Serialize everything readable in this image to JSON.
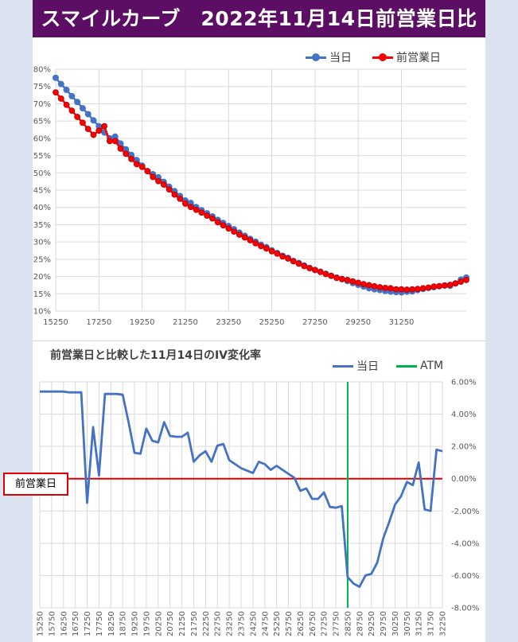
{
  "header": {
    "title": "スマイルカーブ　2022年11月14日前営業日比"
  },
  "legend1": {
    "today": "当日",
    "previous": "前営業日"
  },
  "legend2": {
    "today": "当日",
    "atm": "ATM"
  },
  "side_label": "前営業日",
  "colors": {
    "header_bg": "#5b0e63",
    "today": "#4472c4",
    "previous": "#ff0000",
    "atm": "#00b050",
    "zero_line": "#e00000",
    "page_bg": "#dbe3f1"
  },
  "chart_data": [
    {
      "type": "line",
      "title": "",
      "xlabel": "",
      "ylabel": "",
      "x_start": 15250,
      "x_step": 250,
      "ylim": [
        0.1,
        0.8
      ],
      "y_ticks": [
        "10%",
        "15%",
        "20%",
        "25%",
        "30%",
        "35%",
        "40%",
        "45%",
        "50%",
        "55%",
        "60%",
        "65%",
        "70%",
        "75%",
        "80%"
      ],
      "x_ticks": [
        "15250",
        "17250",
        "19250",
        "21250",
        "23250",
        "25250",
        "27250",
        "29250",
        "31250"
      ],
      "grid": true,
      "legend_position": "top-right",
      "series": [
        {
          "name": "当日",
          "values": [
            0.775,
            0.757,
            0.74,
            0.722,
            0.705,
            0.687,
            0.67,
            0.652,
            0.635,
            0.617,
            0.6,
            0.605,
            0.585,
            0.568,
            0.552,
            0.537,
            0.521,
            0.505,
            0.496,
            0.487,
            0.474,
            0.46,
            0.447,
            0.433,
            0.42,
            0.413,
            0.401,
            0.392,
            0.383,
            0.374,
            0.364,
            0.355,
            0.346,
            0.337,
            0.327,
            0.318,
            0.309,
            0.301,
            0.292,
            0.285,
            0.276,
            0.268,
            0.26,
            0.254,
            0.245,
            0.239,
            0.232,
            0.225,
            0.219,
            0.214,
            0.208,
            0.202,
            0.197,
            0.192,
            0.187,
            0.181,
            0.176,
            0.171,
            0.166,
            0.163,
            0.161,
            0.158,
            0.156,
            0.155,
            0.154,
            0.156,
            0.157,
            0.161,
            0.164,
            0.167,
            0.169,
            0.172,
            0.174,
            0.173,
            0.18,
            0.191,
            0.197
          ]
        },
        {
          "name": "前営業日",
          "values": [
            0.733,
            0.715,
            0.697,
            0.68,
            0.662,
            0.645,
            0.627,
            0.61,
            0.622,
            0.635,
            0.592,
            0.592,
            0.57,
            0.555,
            0.54,
            0.525,
            0.517,
            0.505,
            0.488,
            0.476,
            0.466,
            0.452,
            0.437,
            0.425,
            0.411,
            0.401,
            0.393,
            0.385,
            0.376,
            0.368,
            0.357,
            0.348,
            0.339,
            0.33,
            0.321,
            0.313,
            0.305,
            0.296,
            0.288,
            0.281,
            0.273,
            0.266,
            0.258,
            0.252,
            0.244,
            0.237,
            0.23,
            0.224,
            0.219,
            0.213,
            0.207,
            0.202,
            0.196,
            0.193,
            0.19,
            0.186,
            0.182,
            0.178,
            0.175,
            0.172,
            0.169,
            0.167,
            0.166,
            0.163,
            0.163,
            0.162,
            0.163,
            0.164,
            0.166,
            0.168,
            0.171,
            0.172,
            0.174,
            0.176,
            0.18,
            0.185,
            0.19
          ]
        }
      ]
    },
    {
      "type": "line",
      "title": "前営業日と比較した11月14日のIV変化率",
      "xlabel": "",
      "ylabel": "",
      "x_start": 15250,
      "x_step": 250,
      "ylim": [
        -0.08,
        0.06
      ],
      "y_ticks": [
        "6.00%",
        "4.00%",
        "2.00%",
        "0.00%",
        "-2.00%",
        "-4.00%",
        "-6.00%",
        "-8.00%"
      ],
      "x_ticks": [
        "15250",
        "15750",
        "16250",
        "16750",
        "17250",
        "17750",
        "18250",
        "18750",
        "19250",
        "19750",
        "20250",
        "20750",
        "21250",
        "21750",
        "22250",
        "22750",
        "23250",
        "23750",
        "24250",
        "24750",
        "25250",
        "25750",
        "26250",
        "26750",
        "27250",
        "27750",
        "28250",
        "28750",
        "29250",
        "29750",
        "30250",
        "30750",
        "31250",
        "31750",
        "32250"
      ],
      "atm_x": 28250,
      "grid": true,
      "legend_position": "top-right",
      "series": [
        {
          "name": "当日",
          "values": [
            0.054,
            0.054,
            0.054,
            0.054,
            0.054,
            0.0535,
            0.0535,
            0.0535,
            -0.015,
            0.032,
            0.002,
            0.0525,
            0.0525,
            0.0525,
            0.052,
            0.035,
            0.016,
            0.0155,
            0.031,
            0.0235,
            0.0225,
            0.035,
            0.0265,
            0.026,
            0.026,
            0.0285,
            0.0105,
            0.0145,
            0.017,
            0.0105,
            0.0205,
            0.0215,
            0.0115,
            0.009,
            0.0065,
            0.005,
            0.0035,
            0.0105,
            0.009,
            0.0055,
            0.008,
            0.0055,
            0.003,
            0.0005,
            -0.0075,
            -0.006,
            -0.0125,
            -0.0125,
            -0.0085,
            -0.0175,
            -0.018,
            -0.017,
            -0.061,
            -0.065,
            -0.067,
            -0.06,
            -0.059,
            -0.052,
            -0.037,
            -0.027,
            -0.016,
            -0.011,
            -0.002,
            -0.004,
            0.01,
            -0.019,
            -0.02,
            0.018,
            0.017
          ]
        }
      ]
    }
  ]
}
